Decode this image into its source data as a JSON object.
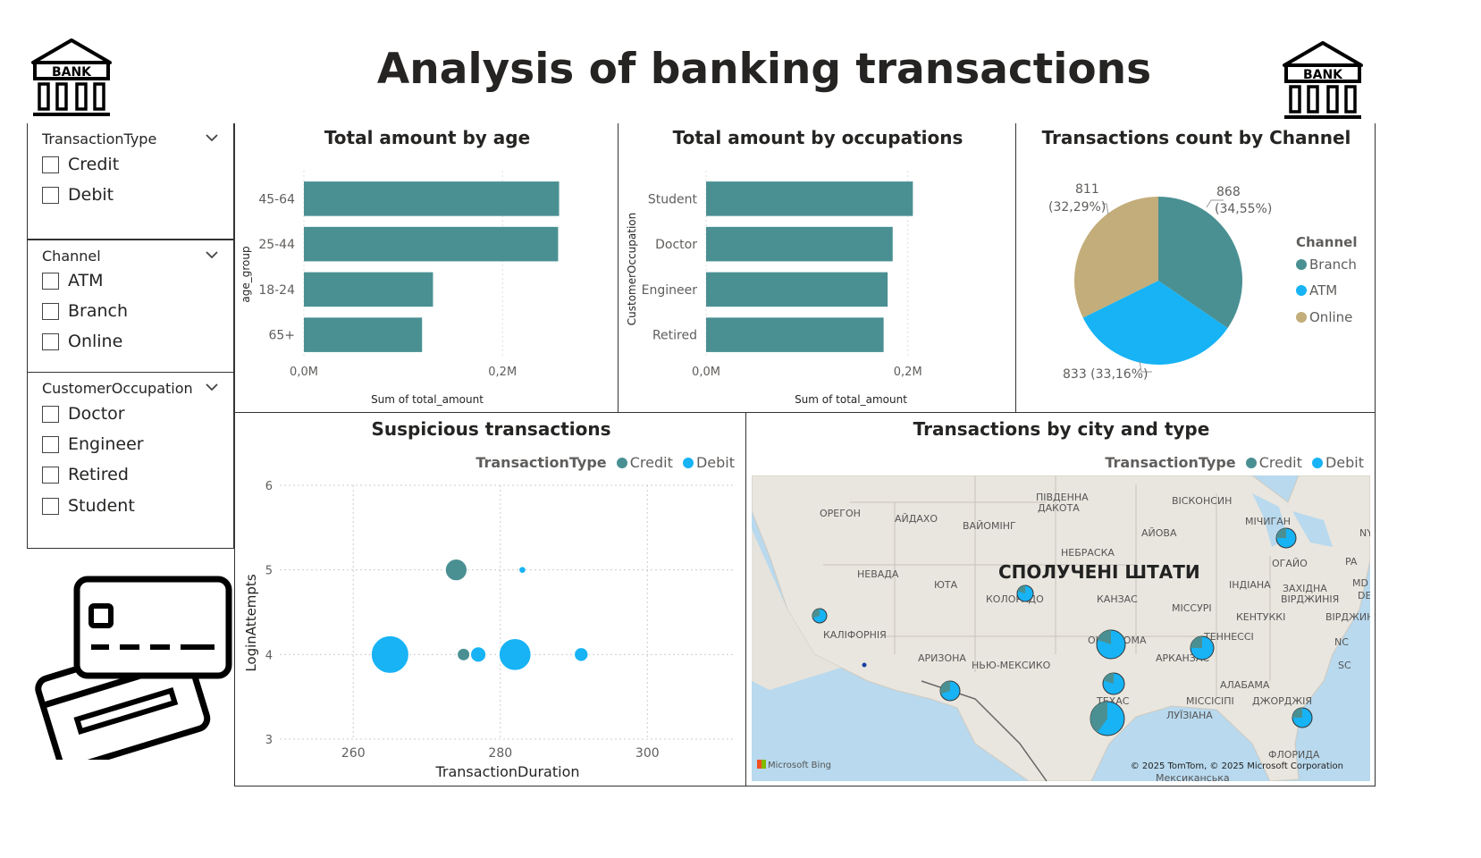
{
  "page_title": "Analysis of banking transactions",
  "bank_icon_label": "BANK",
  "colors": {
    "teal": "#4a9093",
    "blue": "#17b3f5",
    "tan": "#c3ad7a",
    "dark": "#252423"
  },
  "slicers": [
    {
      "title": "TransactionType",
      "options": [
        "Credit",
        "Debit"
      ]
    },
    {
      "title": "Channel",
      "options": [
        "ATM",
        "Branch",
        "Online"
      ]
    },
    {
      "title": "CustomerOccupation",
      "options": [
        "Doctor",
        "Engineer",
        "Retired",
        "Student"
      ]
    }
  ],
  "age_chart": {
    "title": "Total amount by age",
    "ylabel": "age_group",
    "xlabel": "Sum of total_amount",
    "tick_labels": [
      "0,0M",
      "0,2M"
    ]
  },
  "occ_chart": {
    "title": "Total amount by occupations",
    "ylabel": "CustomerOccupation",
    "xlabel": "Sum of total_amount",
    "tick_labels": [
      "0,0M",
      "0,2M"
    ]
  },
  "pie_chart": {
    "title": "Transactions count by Channel",
    "legend_title": "Channel",
    "labels": {
      "branch_value": "868",
      "branch_pct": "(34,55%)",
      "online_value": "811",
      "online_pct": "(32,29%)",
      "atm_text": "833 (33,16%)"
    }
  },
  "scatter_chart": {
    "title": "Suspicious transactions",
    "legend_title": "TransactionType",
    "xlabel": "TransactionDuration",
    "ylabel": "LoginAttempts",
    "xticks": [
      "260",
      "280",
      "300"
    ],
    "yticks": [
      "6",
      "5",
      "4",
      "3"
    ]
  },
  "map_chart": {
    "title": "Transactions by city and type",
    "legend_title": "TransactionType",
    "country_label": "СПОЛУЧЕНІ ШТАТИ",
    "attribution": "© 2025 TomTom, © 2025 Microsoft Corporation",
    "bing": "Microsoft Bing",
    "states": [
      {
        "name": "ОРЕГОН"
      },
      {
        "name": "АЙДАХО"
      },
      {
        "name": "ВАЙОМІНГ"
      },
      {
        "name": "ПІВДЕННА"
      },
      {
        "name": "ДАКОТА"
      },
      {
        "name": "ВІСКОНСИН"
      },
      {
        "name": "МІЧИГАН"
      },
      {
        "name": "АЙОВА"
      },
      {
        "name": "НЕБРАСКА"
      },
      {
        "name": "НЕВАДА"
      },
      {
        "name": "ЮТА"
      },
      {
        "name": "КОЛОРАДО"
      },
      {
        "name": "КАНЗАС"
      },
      {
        "name": "МІССУРІ"
      },
      {
        "name": "ІНДІАНА"
      },
      {
        "name": "ОГАЙО"
      },
      {
        "name": "PA"
      },
      {
        "name": "ЗАХІДНА"
      },
      {
        "name": "ВІРДЖИНІЯ"
      },
      {
        "name": "КЕНТУККІ"
      },
      {
        "name": "ВІРДЖИНІЯ"
      },
      {
        "name": "КАЛІФОРНІЯ"
      },
      {
        "name": "ОКЛАХОМА"
      },
      {
        "name": "ТЕННЕССІ"
      },
      {
        "name": "NC"
      },
      {
        "name": "АРИЗОНА"
      },
      {
        "name": "НЬЮ-МЕКСИКО"
      },
      {
        "name": "АРКАНЗАС"
      },
      {
        "name": "SC"
      },
      {
        "name": "АЛАБАМА"
      },
      {
        "name": "ТЕХАС"
      },
      {
        "name": "МІССІСІПІ"
      },
      {
        "name": "ДЖОРДЖІЯ"
      },
      {
        "name": "ЛУЇЗІАНА"
      },
      {
        "name": "ФЛОРИДА"
      },
      {
        "name": "Мексиканська"
      },
      {
        "name": "MD"
      },
      {
        "name": "DE"
      },
      {
        "name": "NY"
      }
    ]
  },
  "chart_data": [
    {
      "type": "bar",
      "orientation": "horizontal",
      "title": "Total amount by age",
      "xlabel": "Sum of total_amount",
      "ylabel": "age_group",
      "categories": [
        "45-64",
        "25-44",
        "18-24",
        "65+"
      ],
      "values": [
        0.257,
        0.256,
        0.13,
        0.119
      ],
      "units": "M",
      "xlim": [
        0,
        0.27
      ]
    },
    {
      "type": "bar",
      "orientation": "horizontal",
      "title": "Total amount by occupations",
      "xlabel": "Sum of total_amount",
      "ylabel": "CustomerOccupation",
      "categories": [
        "Student",
        "Doctor",
        "Engineer",
        "Retired"
      ],
      "values": [
        0.205,
        0.185,
        0.18,
        0.176
      ],
      "units": "M",
      "xlim": [
        0,
        0.21
      ]
    },
    {
      "type": "pie",
      "title": "Transactions count by Channel",
      "categories": [
        "Branch",
        "ATM",
        "Online"
      ],
      "values": [
        868,
        833,
        811
      ],
      "colors": [
        "#4a9093",
        "#17b3f5",
        "#c3ad7a"
      ],
      "legend": "right"
    },
    {
      "type": "scatter",
      "title": "Suspicious transactions",
      "xlabel": "TransactionDuration",
      "ylabel": "LoginAttempts",
      "xlim": [
        250,
        312
      ],
      "ylim": [
        3,
        6
      ],
      "series": [
        {
          "name": "Credit",
          "points": [
            {
              "x": 274,
              "y": 5,
              "size": 3
            },
            {
              "x": 275,
              "y": 4,
              "size": 1
            }
          ]
        },
        {
          "name": "Debit",
          "points": [
            {
              "x": 283,
              "y": 5,
              "size": 0.3
            },
            {
              "x": 265,
              "y": 4,
              "size": 9
            },
            {
              "x": 277,
              "y": 4,
              "size": 1.5
            },
            {
              "x": 282,
              "y": 4,
              "size": 6.5
            },
            {
              "x": 291,
              "y": 4,
              "size": 1.2
            }
          ]
        }
      ]
    },
    {
      "type": "map",
      "title": "Transactions by city and type",
      "series": [
        "Credit",
        "Debit"
      ]
    }
  ]
}
